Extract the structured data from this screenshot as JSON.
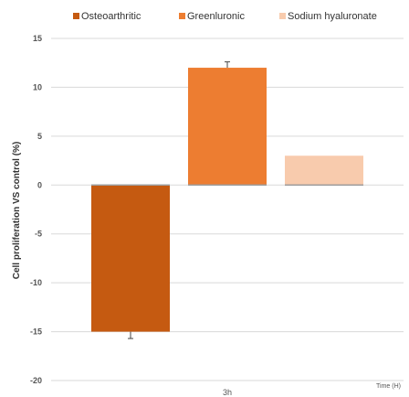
{
  "chart_data": {
    "type": "bar",
    "categories": [
      "3h"
    ],
    "series": [
      {
        "name": "Osteoarthritic",
        "values": [
          -15
        ],
        "error": [
          0.7
        ],
        "color": "#C55A11"
      },
      {
        "name": "Greenluronic",
        "values": [
          12
        ],
        "error": [
          0.6
        ],
        "color": "#ED7D31"
      },
      {
        "name": "Sodium hyaluronate",
        "values": [
          3
        ],
        "error": [
          0
        ],
        "color": "#F8CBAD"
      }
    ],
    "ylabel": "Cell proliferation VS control (%)",
    "xlabel": "Time (H)",
    "ylim": [
      -20,
      15
    ],
    "yticks": [
      15,
      10,
      5,
      0,
      -5,
      -10,
      -15,
      -20
    ],
    "grid": true,
    "legend_position": "top"
  }
}
